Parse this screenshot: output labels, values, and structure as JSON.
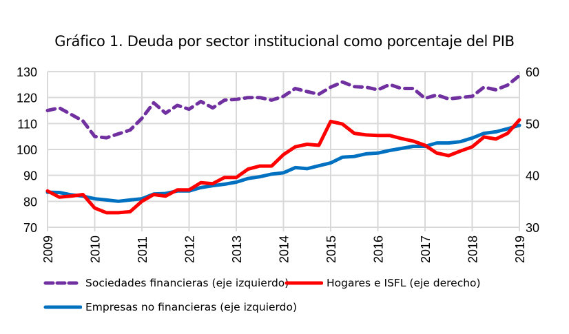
{
  "chart_data": {
    "type": "line",
    "title": "Gráfico 1. Deuda por sector institucional como porcentaje del PIB",
    "xlabel": "",
    "ylabel_left": "",
    "ylabel_right": "",
    "x_ticks": [
      "2009",
      "2010",
      "2011",
      "2012",
      "2013",
      "2014",
      "2015",
      "2016",
      "2017",
      "2018",
      "2019"
    ],
    "x_range": [
      2009,
      2019
    ],
    "x_step": 0.25,
    "ylim_left": [
      70,
      130
    ],
    "yticks_left": [
      70,
      80,
      90,
      100,
      110,
      120,
      130
    ],
    "ylim_right": [
      30,
      60
    ],
    "yticks_right": [
      30,
      40,
      50,
      60
    ],
    "grid": true,
    "legend_position": "bottom",
    "series": [
      {
        "name": "Sociedades financieras (eje izquierdo)",
        "axis": "left",
        "color": "#7030A0",
        "style": "dashed",
        "values": [
          115,
          116,
          113.5,
          111,
          105,
          104.5,
          106,
          107.5,
          112,
          118,
          114,
          117,
          115.5,
          118.5,
          116,
          119,
          119.3,
          120,
          120,
          119,
          120.5,
          123.5,
          122.3,
          121.3,
          124,
          126,
          124.2,
          124,
          123,
          125,
          123.5,
          123.5,
          119.7,
          121,
          119.5,
          120,
          120.5,
          124,
          123,
          124.8,
          128.5
        ]
      },
      {
        "name": "Hogares e ISFL (eje derecho)",
        "axis": "right",
        "color": "#FF0000",
        "style": "solid",
        "values": [
          37,
          35.8,
          36,
          36.3,
          33.7,
          32.8,
          32.8,
          33,
          35,
          36.3,
          36,
          37.2,
          37.2,
          38.6,
          38.4,
          39.6,
          39.6,
          41.2,
          41.8,
          41.8,
          44,
          45.5,
          46,
          45.8,
          50.4,
          49.9,
          48.1,
          47.8,
          47.7,
          47.7,
          47.1,
          46.6,
          45.8,
          44.3,
          43.8,
          44.7,
          45.5,
          47.4,
          47,
          48.1,
          50.7
        ]
      },
      {
        "name": "Empresas no financieras (eje izquierdo)",
        "axis": "left",
        "color": "#0070C0",
        "style": "solid",
        "values": [
          83.5,
          83.4,
          82.5,
          82,
          81,
          80.5,
          80,
          80.5,
          81,
          82.8,
          83,
          84,
          84,
          85.3,
          86,
          86.6,
          87.4,
          88.8,
          89.5,
          90.5,
          91,
          93,
          92.6,
          93.7,
          94.8,
          97,
          97.3,
          98.3,
          98.6,
          99.6,
          100.4,
          101.2,
          101.2,
          102.5,
          102.5,
          103,
          104.4,
          106.2,
          106.8,
          108,
          109.3
        ]
      }
    ]
  }
}
